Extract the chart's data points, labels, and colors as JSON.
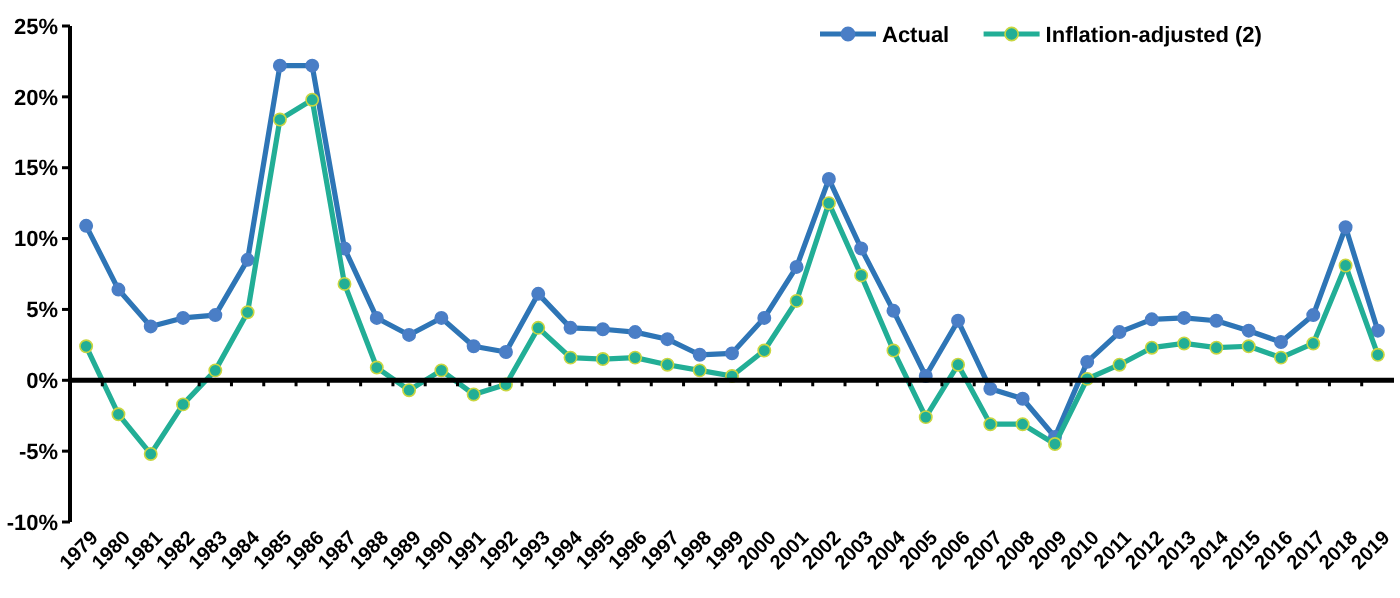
{
  "chart_data": {
    "type": "line",
    "categories": [
      "1979",
      "1980",
      "1981",
      "1982",
      "1983",
      "1984",
      "1985",
      "1986",
      "1987",
      "1988",
      "1989",
      "1990",
      "1991",
      "1992",
      "1993",
      "1994",
      "1995",
      "1996",
      "1997",
      "1998",
      "1999",
      "2000",
      "2001",
      "2002",
      "2003",
      "2004",
      "2005",
      "2006",
      "2007",
      "2008",
      "2009",
      "2010",
      "2011",
      "2012",
      "2013",
      "2014",
      "2015",
      "2016",
      "2017",
      "2018",
      "2019"
    ],
    "series": [
      {
        "name": "Actual",
        "color": "#2e75b6",
        "values": [
          10.9,
          6.4,
          3.8,
          4.4,
          4.6,
          8.5,
          22.2,
          22.2,
          9.3,
          4.4,
          3.2,
          4.4,
          2.4,
          2.0,
          6.1,
          3.7,
          3.6,
          3.4,
          2.9,
          1.8,
          1.9,
          4.4,
          8.0,
          14.2,
          9.3,
          4.9,
          0.3,
          4.2,
          -0.6,
          -1.3,
          -4.0,
          1.3,
          3.4,
          4.3,
          4.4,
          4.2,
          3.5,
          2.7,
          4.6,
          10.8,
          3.5
        ]
      },
      {
        "name": "Inflation-adjusted (2)",
        "color": "#22ae96",
        "values": [
          2.4,
          -2.4,
          -5.2,
          -1.7,
          0.7,
          4.8,
          18.4,
          19.8,
          6.8,
          0.9,
          -0.7,
          0.7,
          -1.0,
          -0.3,
          3.7,
          1.6,
          1.5,
          1.6,
          1.1,
          0.7,
          0.3,
          2.1,
          5.6,
          12.5,
          7.4,
          2.1,
          -2.6,
          1.1,
          -3.1,
          -3.1,
          -4.5,
          0.1,
          1.1,
          2.3,
          2.6,
          2.3,
          2.4,
          1.6,
          2.6,
          8.1,
          1.8
        ]
      }
    ],
    "ylim": [
      -10,
      25
    ],
    "yticks": [
      {
        "value": -10,
        "label": "-10%"
      },
      {
        "value": -5,
        "label": "-5%"
      },
      {
        "value": 0,
        "label": "0%"
      },
      {
        "value": 5,
        "label": "5%"
      },
      {
        "value": 10,
        "label": "10%"
      },
      {
        "value": 15,
        "label": "15%"
      },
      {
        "value": 20,
        "label": "20%"
      },
      {
        "value": 25,
        "label": "25%"
      }
    ],
    "legend": "top right",
    "marker": "circle",
    "line_style": "solid"
  }
}
